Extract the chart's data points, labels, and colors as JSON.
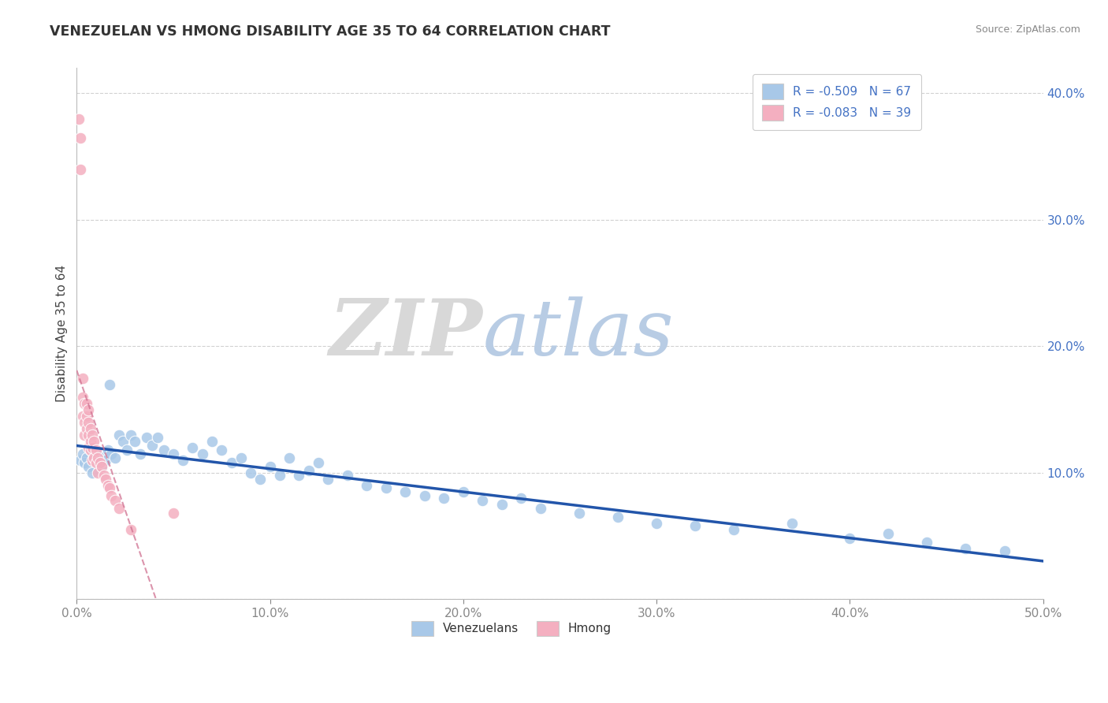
{
  "title": "VENEZUELAN VS HMONG DISABILITY AGE 35 TO 64 CORRELATION CHART",
  "source_text": "Source: ZipAtlas.com",
  "ylabel": "Disability Age 35 to 64",
  "xlim": [
    0.0,
    0.5
  ],
  "ylim": [
    0.0,
    0.42
  ],
  "xticks": [
    0.0,
    0.1,
    0.2,
    0.3,
    0.4,
    0.5
  ],
  "yticks": [
    0.0,
    0.1,
    0.2,
    0.3,
    0.4
  ],
  "ytick_labels": [
    "",
    "10.0%",
    "20.0%",
    "30.0%",
    "40.0%"
  ],
  "xtick_labels": [
    "0.0%",
    "10.0%",
    "20.0%",
    "30.0%",
    "40.0%",
    "50.0%"
  ],
  "venezuelan_R": -0.509,
  "venezuelan_N": 67,
  "hmong_R": -0.083,
  "hmong_N": 39,
  "blue_color": "#a8c8e8",
  "pink_color": "#f4afc0",
  "blue_line_color": "#2255aa",
  "pink_line_color": "#d07090",
  "watermark_zip": "ZIP",
  "watermark_atlas": "atlas",
  "venezuelan_x": [
    0.002,
    0.003,
    0.004,
    0.005,
    0.006,
    0.007,
    0.008,
    0.009,
    0.01,
    0.011,
    0.012,
    0.013,
    0.014,
    0.015,
    0.016,
    0.017,
    0.018,
    0.02,
    0.022,
    0.024,
    0.026,
    0.028,
    0.03,
    0.033,
    0.036,
    0.039,
    0.042,
    0.045,
    0.05,
    0.055,
    0.06,
    0.065,
    0.07,
    0.075,
    0.08,
    0.085,
    0.09,
    0.095,
    0.1,
    0.105,
    0.11,
    0.115,
    0.12,
    0.125,
    0.13,
    0.14,
    0.15,
    0.16,
    0.17,
    0.18,
    0.19,
    0.2,
    0.21,
    0.22,
    0.23,
    0.24,
    0.26,
    0.28,
    0.3,
    0.32,
    0.34,
    0.37,
    0.4,
    0.42,
    0.44,
    0.46,
    0.48
  ],
  "venezuelan_y": [
    0.11,
    0.115,
    0.108,
    0.112,
    0.105,
    0.118,
    0.1,
    0.113,
    0.115,
    0.108,
    0.112,
    0.105,
    0.116,
    0.11,
    0.118,
    0.17,
    0.115,
    0.112,
    0.13,
    0.125,
    0.118,
    0.13,
    0.125,
    0.115,
    0.128,
    0.122,
    0.128,
    0.118,
    0.115,
    0.11,
    0.12,
    0.115,
    0.125,
    0.118,
    0.108,
    0.112,
    0.1,
    0.095,
    0.105,
    0.098,
    0.112,
    0.098,
    0.102,
    0.108,
    0.095,
    0.098,
    0.09,
    0.088,
    0.085,
    0.082,
    0.08,
    0.085,
    0.078,
    0.075,
    0.08,
    0.072,
    0.068,
    0.065,
    0.06,
    0.058,
    0.055,
    0.06,
    0.048,
    0.052,
    0.045,
    0.04,
    0.038
  ],
  "hmong_x": [
    0.001,
    0.002,
    0.002,
    0.003,
    0.003,
    0.003,
    0.004,
    0.004,
    0.004,
    0.005,
    0.005,
    0.005,
    0.006,
    0.006,
    0.006,
    0.006,
    0.007,
    0.007,
    0.007,
    0.008,
    0.008,
    0.008,
    0.009,
    0.009,
    0.01,
    0.01,
    0.011,
    0.011,
    0.012,
    0.013,
    0.014,
    0.015,
    0.016,
    0.017,
    0.018,
    0.02,
    0.022,
    0.028,
    0.05
  ],
  "hmong_y": [
    0.38,
    0.365,
    0.34,
    0.175,
    0.16,
    0.145,
    0.155,
    0.14,
    0.13,
    0.155,
    0.145,
    0.135,
    0.15,
    0.14,
    0.13,
    0.12,
    0.135,
    0.125,
    0.118,
    0.13,
    0.12,
    0.11,
    0.125,
    0.112,
    0.118,
    0.108,
    0.112,
    0.1,
    0.108,
    0.105,
    0.098,
    0.095,
    0.09,
    0.088,
    0.082,
    0.078,
    0.072,
    0.055,
    0.068
  ]
}
